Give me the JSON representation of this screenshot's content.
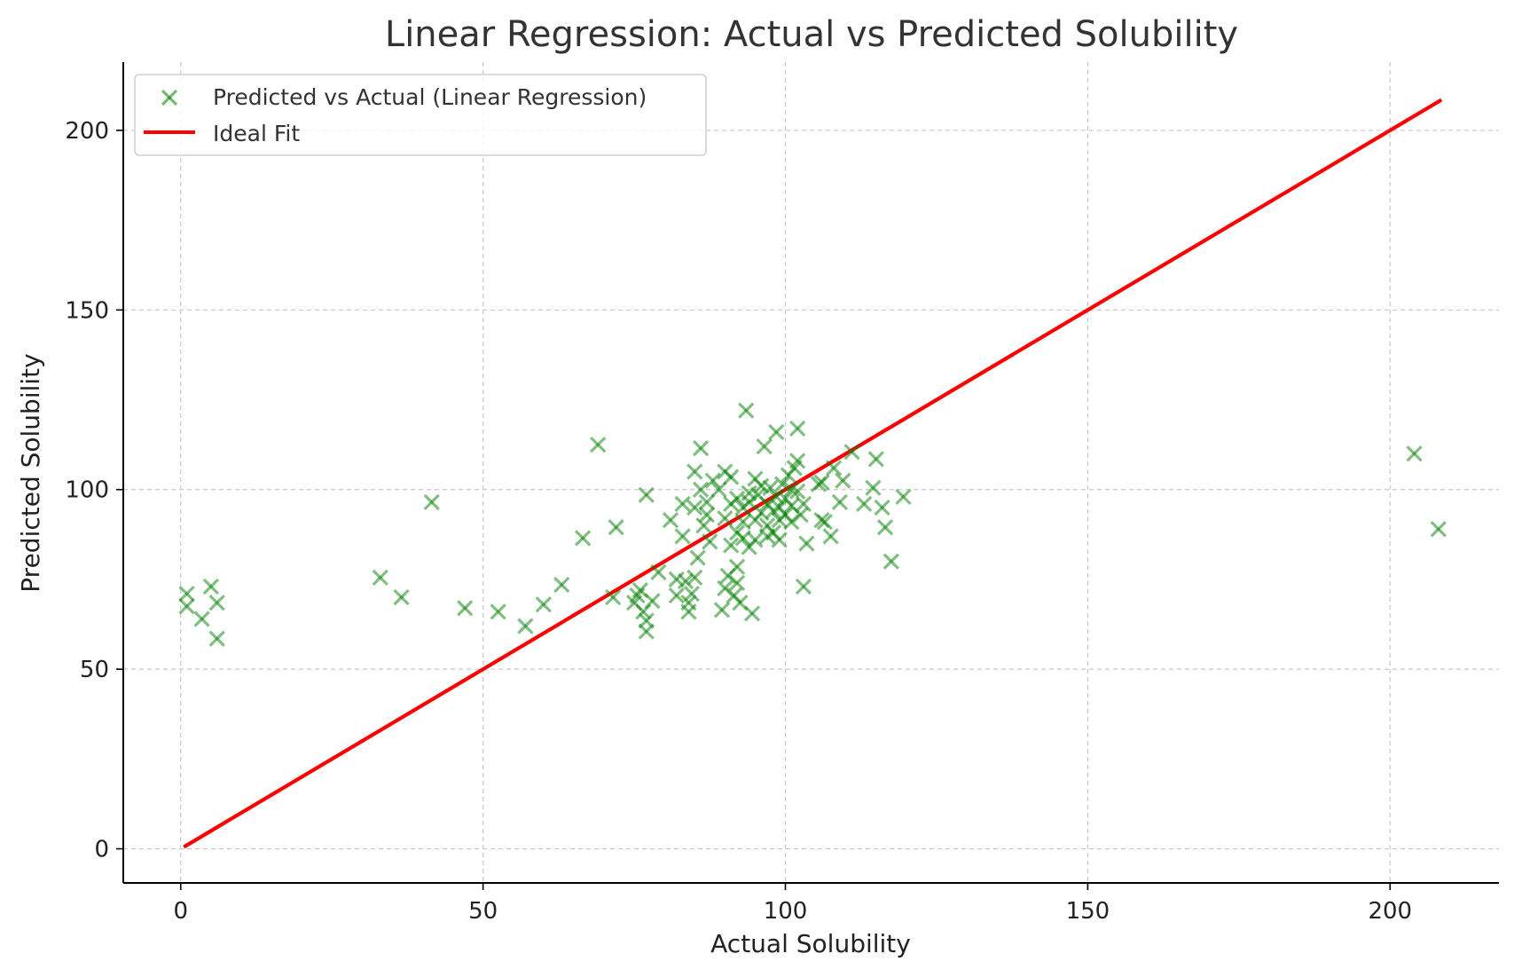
{
  "chart_data": {
    "type": "scatter",
    "title": "Linear Regression: Actual vs Predicted Solubility",
    "xlabel": "Actual Solubility",
    "ylabel": "Predicted Solubility",
    "xlim": [
      -9.5,
      218
    ],
    "ylim": [
      -9.5,
      219
    ],
    "xticks": [
      0,
      50,
      100,
      150,
      200
    ],
    "yticks": [
      0,
      50,
      100,
      150,
      200
    ],
    "xtick_labels": [
      "0",
      "50",
      "100",
      "150",
      "200"
    ],
    "ytick_labels": [
      "0",
      "50",
      "100",
      "150",
      "200"
    ],
    "grid": true,
    "legend": {
      "placement": "top-left",
      "entries": [
        "Predicted vs Actual (Linear Regression)",
        "Ideal Fit"
      ]
    },
    "colors": {
      "scatter": "#008000",
      "ideal_fit": "#ff0000",
      "text": "#333333"
    },
    "series": [
      {
        "name": "Predicted vs Actual (Linear Regression)",
        "kind": "scatter",
        "marker": "x",
        "points": [
          [
            1,
            71
          ],
          [
            1,
            67.5
          ],
          [
            3.5,
            64
          ],
          [
            5,
            73
          ],
          [
            6,
            68.5
          ],
          [
            6,
            58.5
          ],
          [
            33,
            75.5
          ],
          [
            36.5,
            70
          ],
          [
            41.5,
            96.5
          ],
          [
            47,
            67
          ],
          [
            52.5,
            66
          ],
          [
            57,
            62
          ],
          [
            60,
            68
          ],
          [
            63,
            73.5
          ],
          [
            66.5,
            86.5
          ],
          [
            69,
            112.5
          ],
          [
            71.5,
            70
          ],
          [
            72,
            89.5
          ],
          [
            75,
            68.5
          ],
          [
            75.5,
            70.5
          ],
          [
            76,
            72
          ],
          [
            76.5,
            66
          ],
          [
            77,
            63.5
          ],
          [
            77,
            60.5
          ],
          [
            77,
            98.5
          ],
          [
            78,
            69
          ],
          [
            79,
            77
          ],
          [
            81,
            91.5
          ],
          [
            82,
            75
          ],
          [
            82,
            70.5
          ],
          [
            83,
            96
          ],
          [
            83,
            87
          ],
          [
            83.5,
            74.5
          ],
          [
            84,
            68.5
          ],
          [
            84,
            66
          ],
          [
            84.5,
            71
          ],
          [
            85,
            75.5
          ],
          [
            85,
            95
          ],
          [
            85,
            105
          ],
          [
            85.5,
            81
          ],
          [
            86,
            111.5
          ],
          [
            86,
            100
          ],
          [
            86.5,
            90
          ],
          [
            87,
            93
          ],
          [
            87,
            96.5
          ],
          [
            87.5,
            85.5
          ],
          [
            88,
            102.5
          ],
          [
            89,
            100
          ],
          [
            89.5,
            66.5
          ],
          [
            90,
            105
          ],
          [
            90,
            92
          ],
          [
            90,
            72.5
          ],
          [
            90.5,
            76
          ],
          [
            91,
            103.5
          ],
          [
            91,
            96
          ],
          [
            91,
            84.5
          ],
          [
            91.5,
            70.5
          ],
          [
            92,
            78.5
          ],
          [
            92,
            74
          ],
          [
            92,
            97.5
          ],
          [
            92,
            88
          ],
          [
            92.5,
            68.5
          ],
          [
            93,
            95
          ],
          [
            93,
            91
          ],
          [
            93,
            86.5
          ],
          [
            93.5,
            122
          ],
          [
            94,
            99
          ],
          [
            94,
            84
          ],
          [
            94,
            96.5
          ],
          [
            94.5,
            65.5
          ],
          [
            95,
            103
          ],
          [
            95,
            91.5
          ],
          [
            95,
            86
          ],
          [
            95.5,
            98.5
          ],
          [
            96,
            101
          ],
          [
            96,
            93.5
          ],
          [
            96.5,
            112
          ],
          [
            97,
            96
          ],
          [
            97,
            90
          ],
          [
            97,
            87
          ],
          [
            97.5,
            100.5
          ],
          [
            98,
            94
          ],
          [
            98,
            88
          ],
          [
            98.5,
            116
          ],
          [
            98.5,
            98
          ],
          [
            99,
            95
          ],
          [
            99,
            91.5
          ],
          [
            99,
            86
          ],
          [
            99.5,
            101.5
          ],
          [
            100,
            97.5
          ],
          [
            100,
            93
          ],
          [
            100.5,
            104
          ],
          [
            101,
            100
          ],
          [
            101,
            91
          ],
          [
            101,
            95.5
          ],
          [
            101.5,
            106
          ],
          [
            102,
            108
          ],
          [
            102,
            117
          ],
          [
            102,
            99.5
          ],
          [
            102.5,
            93
          ],
          [
            103,
            73
          ],
          [
            103,
            96
          ],
          [
            103.5,
            85
          ],
          [
            105.5,
            101.5
          ],
          [
            106,
            102
          ],
          [
            106,
            91.5
          ],
          [
            106.5,
            91
          ],
          [
            107.5,
            87
          ],
          [
            108,
            106
          ],
          [
            109,
            96.5
          ],
          [
            109.5,
            102.5
          ],
          [
            111,
            110.5
          ],
          [
            113,
            96
          ],
          [
            114.5,
            100.5
          ],
          [
            115,
            108.5
          ],
          [
            116,
            95
          ],
          [
            116.5,
            89.5
          ],
          [
            117.5,
            80
          ],
          [
            119.5,
            98
          ],
          [
            204,
            110
          ],
          [
            208,
            89
          ]
        ]
      },
      {
        "name": "Ideal Fit",
        "kind": "line",
        "points": [
          [
            0.5,
            0.5
          ],
          [
            208.5,
            208.5
          ]
        ]
      }
    ]
  }
}
